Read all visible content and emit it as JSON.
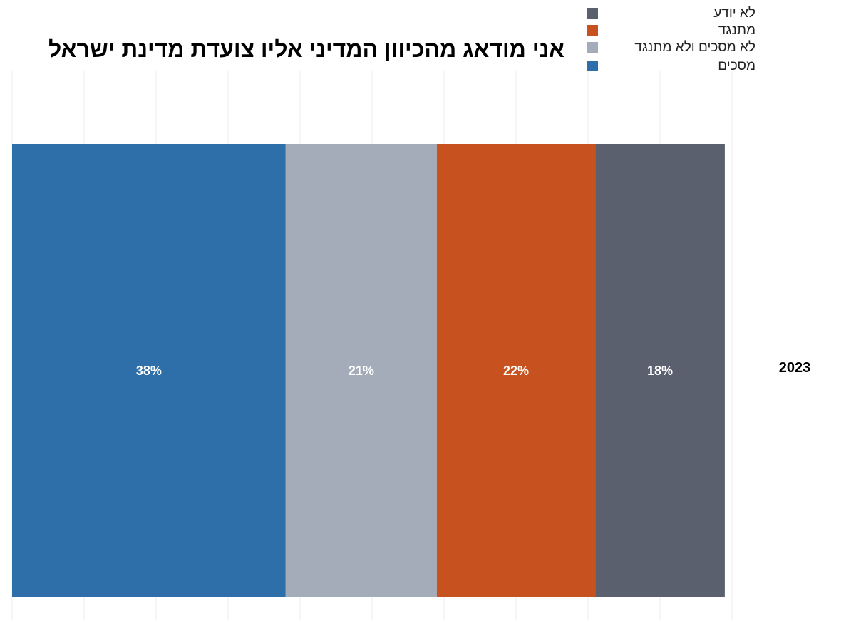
{
  "chart_data": {
    "type": "bar",
    "orientation": "horizontal",
    "stacked": true,
    "title": "אני מודאג מהכיוון המדיני אליו צועדת מדינת ישראל",
    "categories": [
      "2023"
    ],
    "xlim": [
      0,
      100
    ],
    "grid": true,
    "legend_position": "top-right",
    "series": [
      {
        "name": "מסכים",
        "values": [
          38
        ],
        "label": "38%",
        "color": "#2e6ea9"
      },
      {
        "name": "לא מסכים ולא מתנגד",
        "values": [
          21
        ],
        "label": "21%",
        "color": "#a3acb8"
      },
      {
        "name": "מתנגד",
        "values": [
          22
        ],
        "label": "22%",
        "color": "#c75220"
      },
      {
        "name": "לא יודע",
        "values": [
          18
        ],
        "label": "18%",
        "color": "#5a606e"
      }
    ],
    "legend_order": [
      3,
      2,
      1,
      0
    ]
  }
}
